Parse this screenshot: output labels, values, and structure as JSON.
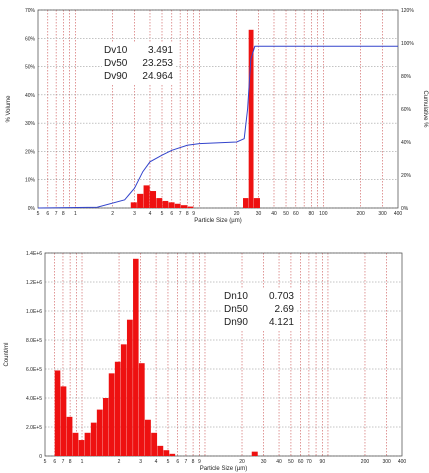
{
  "chart_data": [
    {
      "type": "bar",
      "xlabel": "Particle Size (µm)",
      "ylabel": "% Volume",
      "y2label": "Cumulative %",
      "x_scale": "log",
      "xlim": [
        0.5,
        400
      ],
      "ylim": [
        0,
        70
      ],
      "y2lim": [
        0,
        120
      ],
      "grid": true,
      "x_ticks": [
        "5",
        "6",
        "7",
        "8",
        "1",
        "2",
        "3",
        "4",
        "5",
        "6",
        "7",
        "8",
        "9",
        "20",
        "30",
        "40",
        "50",
        "60",
        "80",
        "100",
        "200",
        "300",
        "400"
      ],
      "y_ticks": [
        "0%",
        "10%",
        "20%",
        "30%",
        "40%",
        "50%",
        "60%",
        "70%"
      ],
      "y2_ticks": [
        "0%",
        "20%",
        "40%",
        "60%",
        "80%",
        "100%",
        "120%"
      ],
      "stats": [
        {
          "label": "Dv10",
          "value": "3.491"
        },
        {
          "label": "Dv50",
          "value": "23.253"
        },
        {
          "label": "Dv90",
          "value": "24.964"
        }
      ],
      "bars": [
        {
          "x0": 2.8,
          "x1": 3.15,
          "y": 2
        },
        {
          "x0": 3.15,
          "x1": 3.55,
          "y": 5
        },
        {
          "x0": 3.55,
          "x1": 4.0,
          "y": 8
        },
        {
          "x0": 4.0,
          "x1": 4.5,
          "y": 6
        },
        {
          "x0": 4.5,
          "x1": 5.05,
          "y": 3.5
        },
        {
          "x0": 5.05,
          "x1": 5.65,
          "y": 2.5
        },
        {
          "x0": 5.65,
          "x1": 6.35,
          "y": 2
        },
        {
          "x0": 6.35,
          "x1": 7.1,
          "y": 1.5
        },
        {
          "x0": 7.1,
          "x1": 8.0,
          "y": 1
        },
        {
          "x0": 8.0,
          "x1": 9.0,
          "y": 0.5
        },
        {
          "x0": 22.5,
          "x1": 25.0,
          "y": 3.5
        },
        {
          "x0": 25.0,
          "x1": 27.5,
          "y": 63
        },
        {
          "x0": 27.5,
          "x1": 31.0,
          "y": 3.5
        }
      ],
      "cumulative": [
        {
          "x": 0.5,
          "y": 0
        },
        {
          "x": 1.5,
          "y": 0.5
        },
        {
          "x": 2.5,
          "y": 5
        },
        {
          "x": 3.0,
          "y": 12
        },
        {
          "x": 3.5,
          "y": 22
        },
        {
          "x": 4.0,
          "y": 28
        },
        {
          "x": 5.0,
          "y": 32
        },
        {
          "x": 6.0,
          "y": 35
        },
        {
          "x": 8.0,
          "y": 38
        },
        {
          "x": 10.0,
          "y": 39
        },
        {
          "x": 20.0,
          "y": 40
        },
        {
          "x": 23.0,
          "y": 42
        },
        {
          "x": 24.5,
          "y": 60
        },
        {
          "x": 26.0,
          "y": 90
        },
        {
          "x": 28.0,
          "y": 98
        },
        {
          "x": 400,
          "y": 98
        }
      ]
    },
    {
      "type": "bar",
      "xlabel": "Particle Size (µm)",
      "ylabel": "Count/ml",
      "x_scale": "log",
      "xlim": [
        0.5,
        400
      ],
      "ylim": [
        0,
        1400000
      ],
      "grid": true,
      "x_ticks": [
        "5",
        "6",
        "7",
        "8",
        "1",
        "2",
        "3",
        "4",
        "5",
        "6",
        "7",
        "8",
        "9",
        "20",
        "30",
        "40",
        "50",
        "60",
        "70",
        "90",
        "200",
        "300",
        "400"
      ],
      "y_ticks": [
        "0",
        "2.0E+5",
        "4.0E+5",
        "6.0E+5",
        "8.0E+5",
        "1.0E+6",
        "1.2E+6",
        "1.4E+6"
      ],
      "stats": [
        {
          "label": "Dn10",
          "value": "0.703"
        },
        {
          "label": "Dn50",
          "value": "2.69"
        },
        {
          "label": "Dn90",
          "value": "4.121"
        }
      ],
      "bars": [
        {
          "x0": 0.6,
          "x1": 0.67,
          "y": 590000
        },
        {
          "x0": 0.67,
          "x1": 0.75,
          "y": 480000
        },
        {
          "x0": 0.75,
          "x1": 0.84,
          "y": 270000
        },
        {
          "x0": 0.84,
          "x1": 0.94,
          "y": 160000
        },
        {
          "x0": 0.94,
          "x1": 1.05,
          "y": 110000
        },
        {
          "x0": 1.05,
          "x1": 1.18,
          "y": 160000
        },
        {
          "x0": 1.18,
          "x1": 1.32,
          "y": 230000
        },
        {
          "x0": 1.32,
          "x1": 1.48,
          "y": 320000
        },
        {
          "x0": 1.48,
          "x1": 1.65,
          "y": 400000
        },
        {
          "x0": 1.65,
          "x1": 1.85,
          "y": 570000
        },
        {
          "x0": 1.85,
          "x1": 2.07,
          "y": 650000
        },
        {
          "x0": 2.07,
          "x1": 2.32,
          "y": 770000
        },
        {
          "x0": 2.32,
          "x1": 2.6,
          "y": 940000
        },
        {
          "x0": 2.6,
          "x1": 2.9,
          "y": 1360000
        },
        {
          "x0": 2.9,
          "x1": 3.25,
          "y": 640000
        },
        {
          "x0": 3.25,
          "x1": 3.65,
          "y": 250000
        },
        {
          "x0": 3.65,
          "x1": 4.1,
          "y": 160000
        },
        {
          "x0": 4.1,
          "x1": 4.6,
          "y": 70000
        },
        {
          "x0": 4.6,
          "x1": 5.15,
          "y": 40000
        },
        {
          "x0": 5.15,
          "x1": 5.75,
          "y": 15000
        },
        {
          "x0": 24.0,
          "x1": 27.0,
          "y": 30000
        }
      ]
    }
  ]
}
